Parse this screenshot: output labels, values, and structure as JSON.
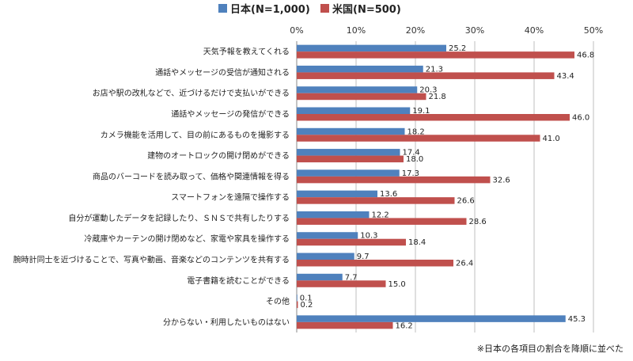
{
  "chart_data": {
    "type": "bar",
    "orientation": "horizontal",
    "categories": [
      "天気予報を教えてくれる",
      "通話やメッセージの受信が通知される",
      "お店や駅の改札などで、近づけるだけで支払いができる",
      "通話やメッセージの発信ができる",
      "カメラ機能を活用して、目の前にあるものを撮影する",
      "建物のオートロックの開け閉めができる",
      "商品のバーコードを読み取って、価格や関連情報を得る",
      "スマートフォンを遠隔で操作する",
      "自分が運動したデータを記録したり、ＳＮＳで共有したりする",
      "冷蔵庫やカーテンの開け閉めなど、家電や家具を操作する",
      "腕時計同士を近づけることで、写真や動画、音楽などのコンテンツを共有する",
      "電子書籍を読むことができる",
      "その他",
      "分からない・利用したいものはない"
    ],
    "series": [
      {
        "name": "日本(N=1,000)",
        "color": "#4F81BD",
        "values": [
          25.2,
          21.3,
          20.3,
          19.1,
          18.2,
          17.4,
          17.3,
          13.6,
          12.2,
          10.3,
          9.7,
          7.7,
          0.1,
          45.3
        ],
        "labels": [
          "25.2",
          "21.3",
          "20.3",
          "19.1",
          "18.2",
          "17.4",
          "17.3",
          "13.6",
          "12.2",
          "10.3",
          "9.7",
          "7.7",
          "0.1",
          "45.3"
        ]
      },
      {
        "name": "米国(N=500)",
        "color": "#C0504D",
        "values": [
          46.8,
          43.4,
          21.8,
          46.0,
          41.0,
          18.0,
          32.6,
          26.6,
          28.6,
          18.4,
          26.4,
          15.0,
          0.2,
          16.2
        ],
        "labels": [
          "46.8",
          "43.4",
          "21.8",
          "46.0",
          "41.0",
          "18.0",
          "32.6",
          "26.6",
          "28.6",
          "18.4",
          "26.4",
          "15.0",
          "0.2",
          "16.2"
        ]
      }
    ],
    "xlim": [
      0,
      50
    ],
    "ticks": [
      "0%",
      "10%",
      "20%",
      "30%",
      "40%",
      "50%"
    ],
    "legend_position": "top",
    "grid": true,
    "gridline_color": "#bfbfbf"
  },
  "note": "※日本の各項目の割合を降順に並べた"
}
